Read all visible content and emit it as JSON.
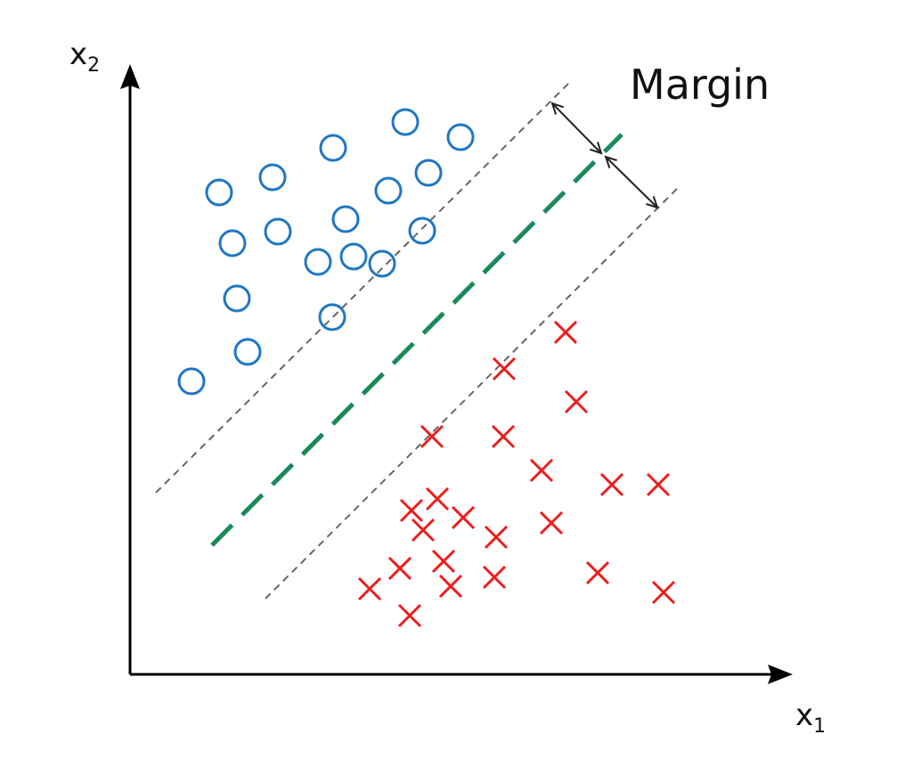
{
  "axes": {
    "x_label_base": "x",
    "x_label_sub": "1",
    "y_label_base": "x",
    "y_label_sub": "2"
  },
  "annotation": {
    "margin_label": "Margin"
  },
  "colors": {
    "class_a": "#1f77c4",
    "class_b": "#ee1c1c",
    "hyperplane": "#1a8a5a",
    "margin_lines": "#666666",
    "axes": "#000000",
    "arrow": "#222222"
  },
  "classes": {
    "circle_points": [
      [
        455,
        137
      ],
      [
        517,
        154
      ],
      [
        374,
        166
      ],
      [
        481,
        194
      ],
      [
        306,
        199
      ],
      [
        246,
        216
      ],
      [
        436,
        214
      ],
      [
        388,
        246
      ],
      [
        312,
        260
      ],
      [
        261,
        273
      ],
      [
        474,
        259
      ],
      [
        357,
        294
      ],
      [
        397,
        288
      ],
      [
        429,
        296
      ],
      [
        266,
        335
      ],
      [
        373,
        356
      ],
      [
        278,
        395
      ],
      [
        215,
        428
      ]
    ],
    "cross_points": [
      [
        635,
        373
      ],
      [
        566,
        414
      ],
      [
        647,
        451
      ],
      [
        485,
        490
      ],
      [
        565,
        490
      ],
      [
        608,
        528
      ],
      [
        687,
        544
      ],
      [
        739,
        544
      ],
      [
        462,
        573
      ],
      [
        491,
        560
      ],
      [
        520,
        581
      ],
      [
        475,
        595
      ],
      [
        619,
        587
      ],
      [
        557,
        603
      ],
      [
        449,
        638
      ],
      [
        498,
        630
      ],
      [
        415,
        661
      ],
      [
        506,
        658
      ],
      [
        555,
        648
      ],
      [
        671,
        643
      ],
      [
        745,
        665
      ],
      [
        460,
        691
      ]
    ]
  }
}
